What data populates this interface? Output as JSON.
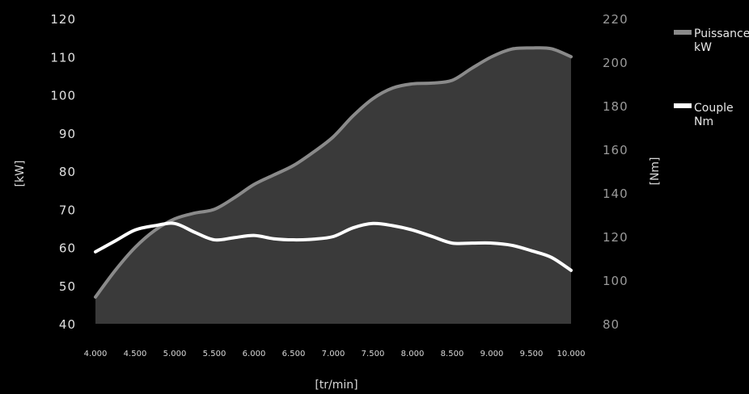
{
  "chart_data": {
    "type": "line",
    "x": [
      4000,
      4250,
      4500,
      4750,
      5000,
      5250,
      5500,
      5750,
      6000,
      6250,
      6500,
      6750,
      7000,
      7250,
      7500,
      7750,
      8000,
      8250,
      8500,
      8750,
      9000,
      9250,
      9500,
      9750,
      10000
    ],
    "x_tick_values": [
      4000,
      4500,
      5000,
      5500,
      6000,
      6500,
      7000,
      7500,
      8000,
      8500,
      9000,
      9500,
      10000
    ],
    "x_tick_labels": [
      "4.000",
      "4.500",
      "5.000",
      "5.500",
      "6.000",
      "6.500",
      "7.000",
      "7.500",
      "8.000",
      "8.500",
      "9.000",
      "9.500",
      "10.000"
    ],
    "xlabel": "[tr/min]",
    "xlim": [
      4000,
      10000
    ],
    "y_left": {
      "label": "[kW]",
      "lim": [
        40,
        120
      ],
      "ticks": [
        "40",
        "50",
        "60",
        "70",
        "80",
        "90",
        "100",
        "110",
        "120"
      ]
    },
    "y_right": {
      "label": "[Nm]",
      "lim": [
        80,
        220
      ],
      "ticks": [
        "80",
        "100",
        "120",
        "140",
        "160",
        "180",
        "200",
        "220"
      ]
    },
    "series": [
      {
        "name": "Puissance kW",
        "legend_lines": [
          "Puissance",
          "kW"
        ],
        "axis": "left",
        "color": "#8a8a8a",
        "fill": "#3a3a3a",
        "values": [
          47,
          54,
          60,
          64.5,
          67.5,
          69,
          70,
          73,
          76.5,
          79,
          81.5,
          85,
          89,
          94.5,
          99,
          101.8,
          102.9,
          103.1,
          103.8,
          107,
          110,
          112,
          112.3,
          112.1,
          110
        ]
      },
      {
        "name": "Couple Nm",
        "legend_lines": [
          "Couple",
          "Nm"
        ],
        "axis": "right",
        "color": "#ffffff",
        "values": [
          113,
          118,
          123,
          125,
          126,
          122,
          118.5,
          119.5,
          120.5,
          119,
          118.5,
          118.8,
          120,
          124,
          126,
          125,
          123,
          120,
          117,
          117,
          117,
          116,
          113.5,
          110.5,
          104.5
        ]
      }
    ],
    "grid": false,
    "legend_position": "top-right"
  }
}
